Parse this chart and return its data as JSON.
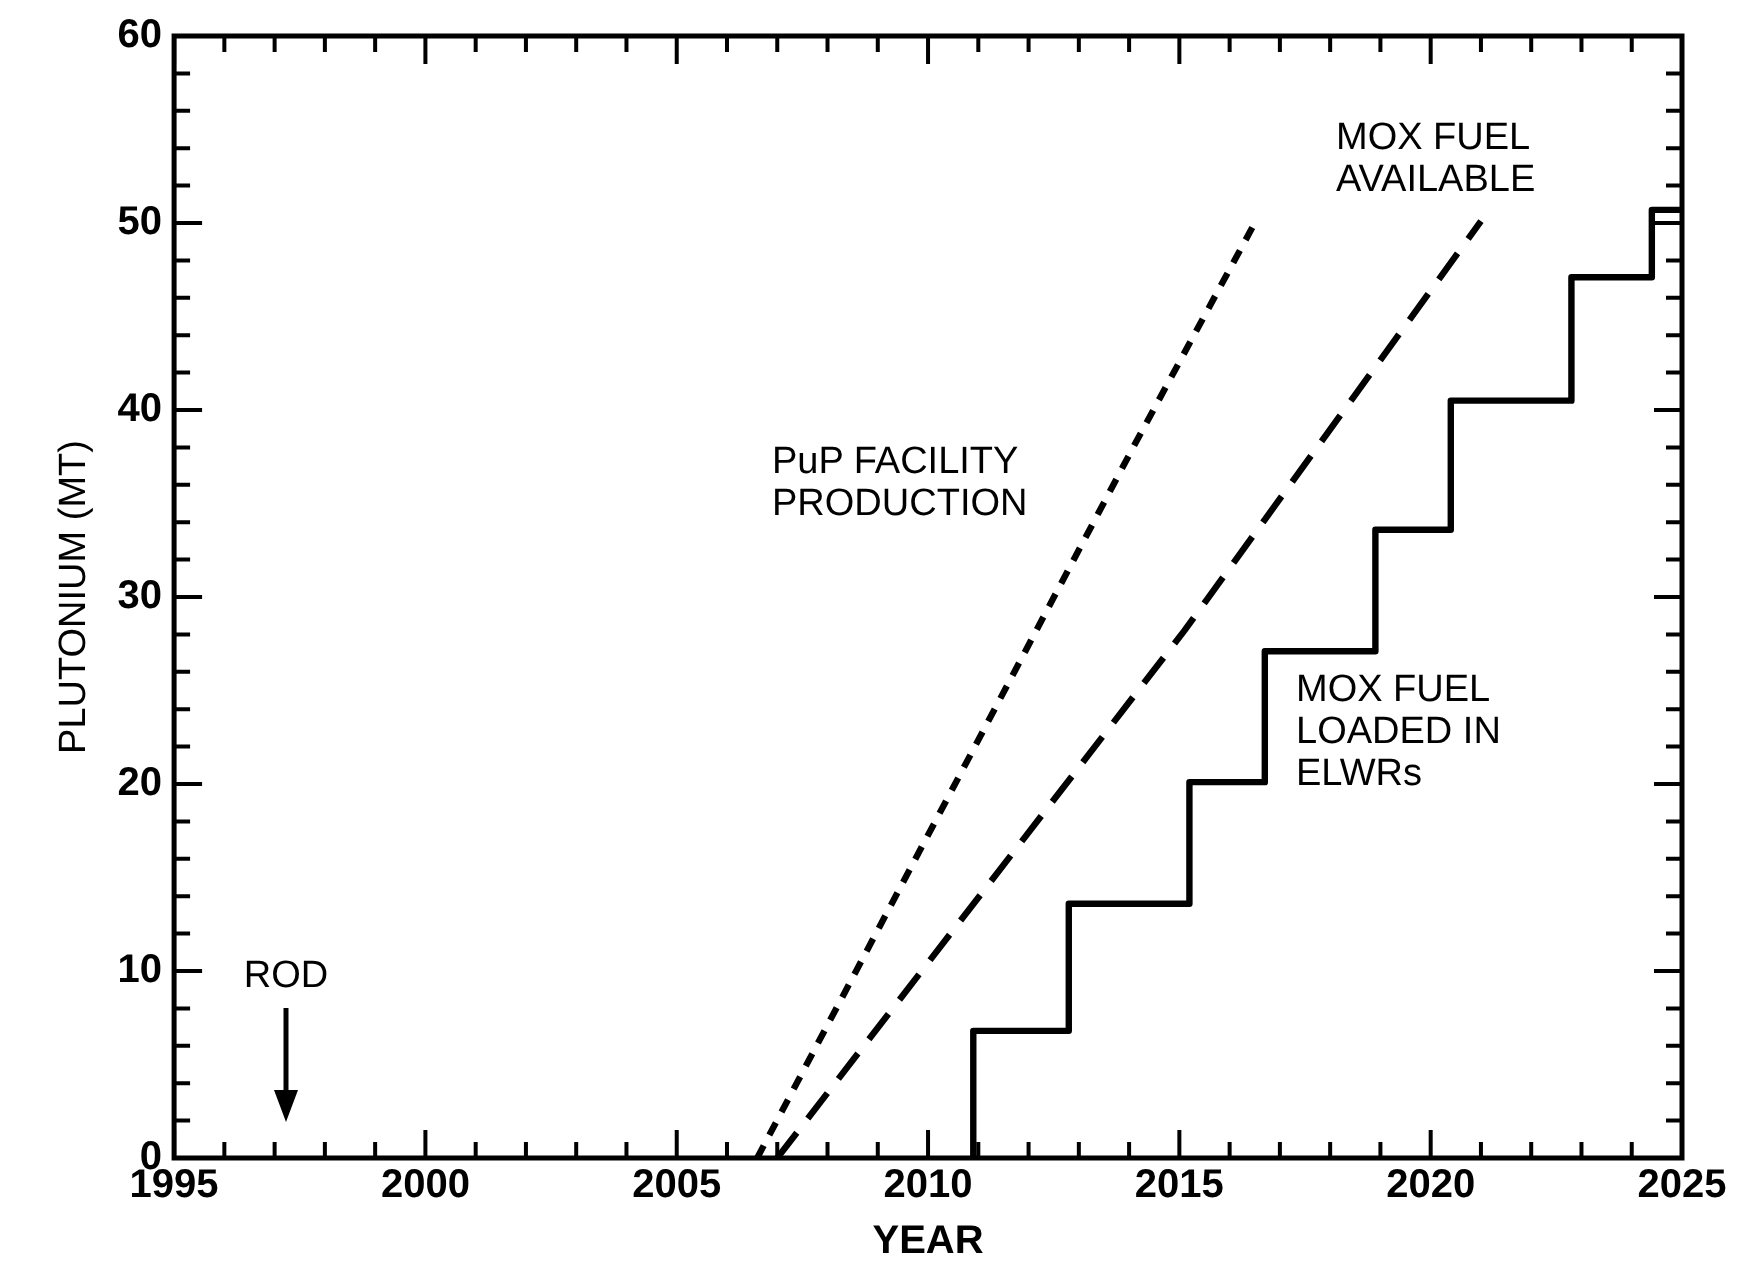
{
  "chart_data": {
    "type": "line",
    "xlabel": "YEAR",
    "ylabel": "PLUTONIUM (MT)",
    "xlim": [
      1995,
      2025
    ],
    "ylim": [
      0,
      60
    ],
    "xticks": [
      1995,
      {
        "value": 1996,
        "label": null
      },
      {
        "value": 1997,
        "label": null
      },
      {
        "value": 1998,
        "label": null
      },
      {
        "value": 1999,
        "label": null
      },
      2000,
      {
        "value": 2001,
        "label": null
      },
      {
        "value": 2002,
        "label": null
      },
      {
        "value": 2003,
        "label": null
      },
      {
        "value": 2004,
        "label": null
      },
      2005,
      {
        "value": 2006,
        "label": null
      },
      {
        "value": 2007,
        "label": null
      },
      {
        "value": 2008,
        "label": null
      },
      {
        "value": 2009,
        "label": null
      },
      2010,
      {
        "value": 2011,
        "label": null
      },
      {
        "value": 2012,
        "label": null
      },
      {
        "value": 2013,
        "label": null
      },
      {
        "value": 2014,
        "label": null
      },
      2015,
      {
        "value": 2016,
        "label": null
      },
      {
        "value": 2017,
        "label": null
      },
      {
        "value": 2018,
        "label": null
      },
      {
        "value": 2019,
        "label": null
      },
      2020,
      {
        "value": 2021,
        "label": null
      },
      {
        "value": 2022,
        "label": null
      },
      {
        "value": 2023,
        "label": null
      },
      {
        "value": 2024,
        "label": null
      },
      2025
    ],
    "yticks": [
      0,
      {
        "value": 2,
        "label": null
      },
      {
        "value": 4,
        "label": null
      },
      {
        "value": 6,
        "label": null
      },
      {
        "value": 8,
        "label": null
      },
      10,
      {
        "value": 12,
        "label": null
      },
      {
        "value": 14,
        "label": null
      },
      {
        "value": 16,
        "label": null
      },
      {
        "value": 18,
        "label": null
      },
      20,
      {
        "value": 22,
        "label": null
      },
      {
        "value": 24,
        "label": null
      },
      {
        "value": 26,
        "label": null
      },
      {
        "value": 28,
        "label": null
      },
      30,
      {
        "value": 32,
        "label": null
      },
      {
        "value": 34,
        "label": null
      },
      {
        "value": 36,
        "label": null
      },
      {
        "value": 38,
        "label": null
      },
      40,
      {
        "value": 42,
        "label": null
      },
      {
        "value": 44,
        "label": null
      },
      {
        "value": 46,
        "label": null
      },
      {
        "value": 48,
        "label": null
      },
      50,
      {
        "value": 52,
        "label": null
      },
      {
        "value": 54,
        "label": null
      },
      {
        "value": 56,
        "label": null
      },
      {
        "value": 58,
        "label": null
      },
      60
    ],
    "grid": false,
    "legend": false,
    "marker": "none",
    "series": [
      {
        "name": "PuP FACILITY PRODUCTION",
        "type": "line",
        "line_style": "dotted",
        "color": "#000000",
        "x": [
          2006.6,
          2014.1,
          2016.5
        ],
        "values": [
          0,
          38.1,
          50
        ]
      },
      {
        "name": "MOX FUEL AVAILABLE",
        "type": "line",
        "line_style": "dashed",
        "color": "#000000",
        "x": [
          2007,
          2015.1,
          2021
        ],
        "values": [
          0,
          28.2,
          50.1
        ]
      },
      {
        "name": "MOX FUEL LOADED IN ELWRs",
        "type": "step",
        "line_style": "solid",
        "color": "#000000",
        "x": [
          2010.9,
          2010.9,
          2012.8,
          2015.2,
          2016.7,
          2018.9,
          2020.4,
          2022.8,
          2024.4,
          2025
        ],
        "values": [
          0,
          6.8,
          13.6,
          20.1,
          27.1,
          33.6,
          40.5,
          47.1,
          50.7,
          50.7
        ]
      }
    ],
    "annotations": [
      "ROD"
    ]
  }
}
